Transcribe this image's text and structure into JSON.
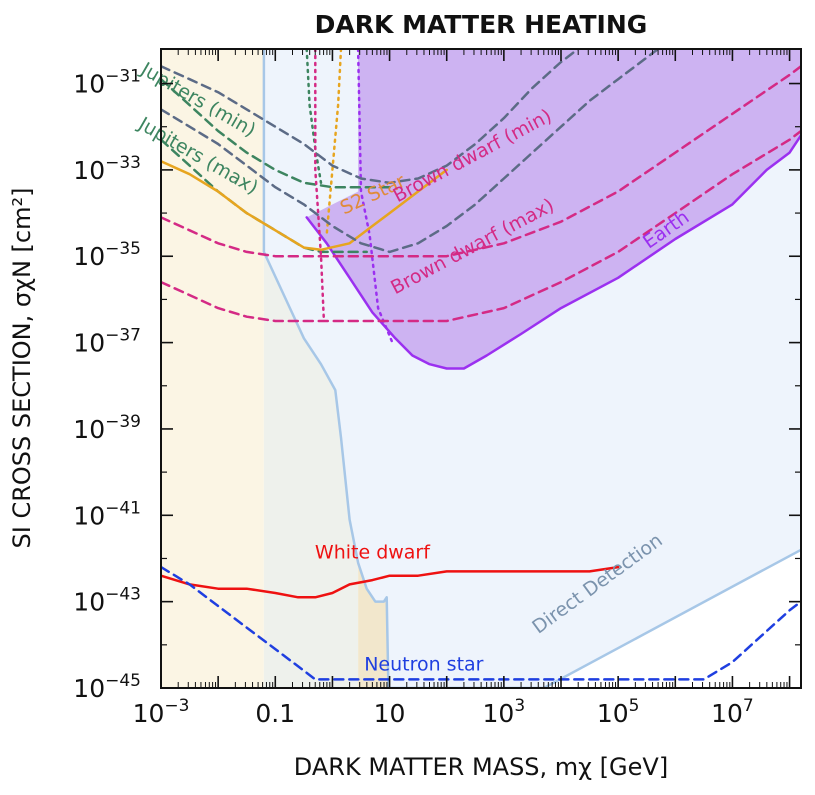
{
  "chart_data": {
    "type": "line",
    "title": "DARK MATTER HEATING",
    "xlabel": "DARK MATTER MASS, mχ [GeV]",
    "ylabel": "SI CROSS SECTION, σχN [cm²]",
    "xscale": "log",
    "yscale": "log",
    "xlim_log10": [
      -3,
      8.2
    ],
    "ylim_log10": [
      -45,
      -30.2
    ],
    "x_ticks": [
      {
        "log": -3,
        "base": "10",
        "exp": "−3"
      },
      {
        "log": -1,
        "base": "0.1",
        "exp": ""
      },
      {
        "log": 1,
        "base": "10",
        "exp": ""
      },
      {
        "log": 3,
        "base": "10",
        "exp": "3"
      },
      {
        "log": 5,
        "base": "10",
        "exp": "5"
      },
      {
        "log": 7,
        "base": "10",
        "exp": "7"
      }
    ],
    "y_ticks": [
      {
        "log": -31,
        "base": "10",
        "exp": "−31"
      },
      {
        "log": -33,
        "base": "10",
        "exp": "−33"
      },
      {
        "log": -35,
        "base": "10",
        "exp": "−35"
      },
      {
        "log": -37,
        "base": "10",
        "exp": "−37"
      },
      {
        "log": -39,
        "base": "10",
        "exp": "−39"
      },
      {
        "log": -41,
        "base": "10",
        "exp": "−41"
      },
      {
        "log": -43,
        "base": "10",
        "exp": "−43"
      },
      {
        "log": -45,
        "base": "10",
        "exp": "−45"
      }
    ],
    "bands": [
      {
        "name": "jupiters-region",
        "x_log": [
          -3,
          -1.2
        ],
        "color": "#fbf5e4"
      },
      {
        "name": "s2-star-region",
        "x_log": [
          -1.2,
          0.45
        ],
        "color": "#eef1ec"
      },
      {
        "name": "earth-region",
        "x_log": [
          0.45,
          1.0
        ],
        "color": "#f2e7cc"
      }
    ],
    "series": [
      {
        "name": "Direct Detection",
        "label": "Direct Detection",
        "color": "#a7c7e7",
        "fill": "#eef4fc",
        "style": "solid",
        "points": [
          [
            -1.2,
            -30.2
          ],
          [
            -1.2,
            -34.9
          ],
          [
            -0.85,
            -35.9
          ],
          [
            -0.5,
            -36.9
          ],
          [
            -0.2,
            -37.5
          ],
          [
            0.05,
            -38.1
          ],
          [
            0.15,
            -39.2
          ],
          [
            0.3,
            -41.1
          ],
          [
            0.45,
            -42.1
          ],
          [
            0.6,
            -42.7
          ],
          [
            0.75,
            -43.0
          ],
          [
            0.9,
            -43.0
          ],
          [
            0.95,
            -42.9
          ],
          [
            0.98,
            -45
          ],
          [
            3.7,
            -45
          ],
          [
            8.2,
            -41.8
          ]
        ]
      },
      {
        "name": "Earth",
        "label": "Earth",
        "color": "#9b30f0",
        "fill": "#cdb3f2",
        "style": "solid",
        "points": [
          [
            -0.45,
            -34.1
          ],
          [
            -0.1,
            -34.7
          ],
          [
            0.3,
            -35.5
          ],
          [
            0.7,
            -36.3
          ],
          [
            1.1,
            -36.9
          ],
          [
            1.4,
            -37.3
          ],
          [
            1.7,
            -37.5
          ],
          [
            2.0,
            -37.6
          ],
          [
            2.3,
            -37.6
          ],
          [
            2.7,
            -37.3
          ],
          [
            3.3,
            -36.8
          ],
          [
            4.0,
            -36.2
          ],
          [
            5.0,
            -35.5
          ],
          [
            6.0,
            -34.6
          ],
          [
            7.0,
            -33.8
          ],
          [
            7.6,
            -33.0
          ],
          [
            8.0,
            -32.6
          ],
          [
            8.2,
            -32.2
          ]
        ]
      },
      {
        "name": "Earth (dotted edge)",
        "label": "",
        "color": "#9b30f0",
        "style": "dotted",
        "points": [
          [
            0.45,
            -30.2
          ],
          [
            0.5,
            -33.5
          ],
          [
            0.65,
            -34.5
          ],
          [
            0.8,
            -36.2
          ],
          [
            1.05,
            -37.0
          ]
        ]
      },
      {
        "name": "Jupiters (min)",
        "label": "Jupiters (min)",
        "color": "#3d8560",
        "style": "dashed",
        "points": [
          [
            -3,
            -30.9
          ],
          [
            -2.5,
            -31.5
          ],
          [
            -2.0,
            -32.1
          ],
          [
            -1.5,
            -32.6
          ],
          [
            -1.0,
            -33.0
          ],
          [
            -0.5,
            -33.3
          ],
          [
            0.0,
            -33.4
          ],
          [
            0.5,
            -33.4
          ],
          [
            1.0,
            -33.4
          ]
        ]
      },
      {
        "name": "Jupiters (max)",
        "label": "Jupiters (max)",
        "color": "#3d8560",
        "style": "dashed",
        "points": [
          [
            -3,
            -32.3
          ],
          [
            -2.5,
            -32.9
          ],
          [
            -2.0,
            -33.5
          ],
          [
            -1.5,
            -34.0
          ],
          [
            -1.0,
            -34.4
          ],
          [
            -0.5,
            -34.8
          ],
          [
            -0.2,
            -34.9
          ],
          [
            0.2,
            -34.9
          ],
          [
            0.6,
            -34.9
          ]
        ]
      },
      {
        "name": "Jupiters (min) dotted",
        "label": "",
        "color": "#3d8560",
        "style": "dotted",
        "points": [
          [
            -0.45,
            -30.2
          ],
          [
            -0.4,
            -31.5
          ],
          [
            -0.3,
            -32.5
          ],
          [
            -0.2,
            -33.3
          ]
        ]
      },
      {
        "name": "S2 Star",
        "label": "S2 Star",
        "color": "#e7a51f",
        "style": "solid",
        "points": [
          [
            -3,
            -32.8
          ],
          [
            -2.5,
            -33.1
          ],
          [
            -2.0,
            -33.5
          ],
          [
            -1.5,
            -34.0
          ],
          [
            -1.0,
            -34.4
          ],
          [
            -0.5,
            -34.8
          ],
          [
            -0.2,
            -34.85
          ],
          [
            0.3,
            -34.7
          ],
          [
            0.7,
            -34.3
          ],
          [
            1.0,
            -34.0
          ],
          [
            1.5,
            -33.5
          ],
          [
            2.0,
            -33.0
          ]
        ]
      },
      {
        "name": "S2 Star (dotted edge)",
        "label": "",
        "color": "#e7a51f",
        "style": "dotted",
        "points": [
          [
            0.15,
            -30.2
          ],
          [
            0.1,
            -31.5
          ],
          [
            0.0,
            -33.0
          ],
          [
            -0.1,
            -34.5
          ]
        ]
      },
      {
        "name": "Brown dwarf (min)",
        "label": "Brown dwarf (min)",
        "color": "#d42a85",
        "style": "dashed",
        "points": [
          [
            -3,
            -34.1
          ],
          [
            -2.5,
            -34.4
          ],
          [
            -2.0,
            -34.7
          ],
          [
            -1.5,
            -34.9
          ],
          [
            -1.0,
            -35.0
          ],
          [
            0.0,
            -35.0
          ],
          [
            1.0,
            -35.0
          ],
          [
            2.0,
            -35.0
          ],
          [
            3.0,
            -34.7
          ],
          [
            4.0,
            -34.2
          ],
          [
            5.0,
            -33.5
          ],
          [
            6.0,
            -32.6
          ],
          [
            7.0,
            -31.7
          ],
          [
            8.0,
            -30.8
          ],
          [
            8.2,
            -30.6
          ]
        ]
      },
      {
        "name": "Brown dwarf (max)",
        "label": "Brown dwarf (max)",
        "color": "#d42a85",
        "style": "dashed",
        "points": [
          [
            -3,
            -35.6
          ],
          [
            -2.5,
            -35.9
          ],
          [
            -2.0,
            -36.2
          ],
          [
            -1.5,
            -36.4
          ],
          [
            -1.0,
            -36.5
          ],
          [
            0.0,
            -36.5
          ],
          [
            1.0,
            -36.5
          ],
          [
            2.0,
            -36.5
          ],
          [
            3.0,
            -36.2
          ],
          [
            4.0,
            -35.6
          ],
          [
            5.0,
            -34.9
          ],
          [
            6.0,
            -34.0
          ],
          [
            7.0,
            -33.1
          ],
          [
            8.0,
            -32.3
          ],
          [
            8.2,
            -32.1
          ]
        ]
      },
      {
        "name": "Brown dwarf dotted",
        "label": "",
        "color": "#d42a85",
        "style": "dotted",
        "points": [
          [
            -0.3,
            -30.2
          ],
          [
            -0.3,
            -33.0
          ],
          [
            -0.2,
            -35.0
          ],
          [
            -0.15,
            -36.5
          ]
        ]
      },
      {
        "name": "Brown dwarf (min) dark dashed",
        "label": "",
        "color": "#5c6b86",
        "style": "dashed",
        "points": [
          [
            -3,
            -30.6
          ],
          [
            -2.5,
            -30.9
          ],
          [
            -2.0,
            -31.2
          ],
          [
            -1.5,
            -31.6
          ],
          [
            -1.0,
            -32.0
          ],
          [
            -0.5,
            -32.4
          ],
          [
            0.0,
            -32.9
          ],
          [
            0.5,
            -33.2
          ],
          [
            1.0,
            -33.3
          ],
          [
            1.5,
            -33.2
          ],
          [
            2.0,
            -32.9
          ],
          [
            2.5,
            -32.4
          ],
          [
            3.0,
            -31.8
          ],
          [
            3.5,
            -31.1
          ],
          [
            4.0,
            -30.5
          ],
          [
            4.3,
            -30.2
          ]
        ]
      },
      {
        "name": "Brown dwarf (max) dark dashed",
        "label": "",
        "color": "#5c6b86",
        "style": "dashed",
        "points": [
          [
            -3,
            -31.6
          ],
          [
            -2.5,
            -32.0
          ],
          [
            -2.0,
            -32.4
          ],
          [
            -1.5,
            -32.9
          ],
          [
            -1.0,
            -33.4
          ],
          [
            -0.5,
            -33.8
          ],
          [
            0.0,
            -34.3
          ],
          [
            0.5,
            -34.7
          ],
          [
            1.0,
            -34.9
          ],
          [
            1.5,
            -34.7
          ],
          [
            2.0,
            -34.3
          ],
          [
            2.5,
            -33.8
          ],
          [
            3.0,
            -33.2
          ],
          [
            3.5,
            -32.6
          ],
          [
            4.0,
            -32.0
          ],
          [
            4.5,
            -31.4
          ],
          [
            5.0,
            -30.9
          ],
          [
            5.5,
            -30.4
          ],
          [
            5.7,
            -30.2
          ]
        ]
      },
      {
        "name": "White dwarf",
        "label": "White dwarf",
        "color": "#ee1111",
        "style": "solid",
        "points": [
          [
            -3,
            -42.4
          ],
          [
            -2.5,
            -42.6
          ],
          [
            -2.0,
            -42.7
          ],
          [
            -1.5,
            -42.7
          ],
          [
            -1.0,
            -42.8
          ],
          [
            -0.6,
            -42.9
          ],
          [
            -0.3,
            -42.9
          ],
          [
            0.0,
            -42.8
          ],
          [
            0.3,
            -42.6
          ],
          [
            0.7,
            -42.5
          ],
          [
            1.0,
            -42.4
          ],
          [
            1.5,
            -42.4
          ],
          [
            2.0,
            -42.3
          ],
          [
            2.5,
            -42.3
          ],
          [
            3.0,
            -42.3
          ],
          [
            3.5,
            -42.3
          ],
          [
            4.0,
            -42.3
          ],
          [
            4.5,
            -42.3
          ],
          [
            5.0,
            -42.2
          ]
        ]
      },
      {
        "name": "Neutron star",
        "label": "Neutron star",
        "color": "#1f3fe0",
        "style": "dashed",
        "points": [
          [
            -3,
            -42.2
          ],
          [
            -2.5,
            -42.6
          ],
          [
            -2.0,
            -43.1
          ],
          [
            -1.5,
            -43.6
          ],
          [
            -1.0,
            -44.1
          ],
          [
            -0.5,
            -44.6
          ],
          [
            -0.3,
            -44.8
          ],
          [
            0.0,
            -44.8
          ],
          [
            1.0,
            -44.8
          ],
          [
            2.0,
            -44.8
          ],
          [
            3.0,
            -44.8
          ],
          [
            4.0,
            -44.8
          ],
          [
            5.0,
            -44.8
          ],
          [
            6.0,
            -44.8
          ],
          [
            6.5,
            -44.8
          ],
          [
            7.0,
            -44.4
          ],
          [
            7.5,
            -43.8
          ],
          [
            8.0,
            -43.2
          ],
          [
            8.2,
            -43.0
          ]
        ]
      }
    ],
    "labels": [
      {
        "text": "Jupiters (min)",
        "x_log": -2.4,
        "y_log": -31.5,
        "rotate": 30,
        "color": "#3d8560"
      },
      {
        "text": "Jupiters (max)",
        "x_log": -2.4,
        "y_log": -32.8,
        "rotate": 30,
        "color": "#3d8560"
      },
      {
        "text": "S2 Star",
        "x_log": 0.75,
        "y_log": -33.7,
        "rotate": -25,
        "color": "#e08b3a"
      },
      {
        "text": "Brown dwarf (min)",
        "x_log": 2.5,
        "y_log": -32.8,
        "rotate": -28,
        "color": "#d42a85"
      },
      {
        "text": "Brown dwarf (max)",
        "x_log": 2.5,
        "y_log": -34.9,
        "rotate": -28,
        "color": "#d42a85"
      },
      {
        "text": "Earth",
        "x_log": 5.9,
        "y_log": -34.5,
        "rotate": -35,
        "color": "#9b30f0"
      },
      {
        "text": "White dwarf",
        "x_log": 0.7,
        "y_log": -42.0,
        "rotate": 0,
        "color": "#ee1111"
      },
      {
        "text": "Neutron star",
        "x_log": 1.6,
        "y_log": -44.6,
        "rotate": 0,
        "color": "#1f3fe0"
      },
      {
        "text": "Direct Detection",
        "x_log": 4.7,
        "y_log": -42.7,
        "rotate": -36,
        "color": "#7b93ad"
      }
    ]
  }
}
